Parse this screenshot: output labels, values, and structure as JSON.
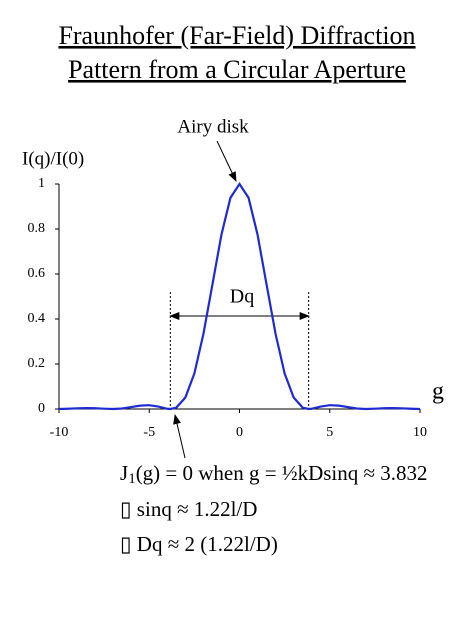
{
  "chart_data": {
    "type": "line",
    "title": [
      "Fraunhofer (Far-Field) Diffraction",
      "Pattern from a Circular Aperture"
    ],
    "y_label": "I(q)/I(0)",
    "x_label": "g",
    "x": [
      -10,
      -9.5,
      -9,
      -8.5,
      -8,
      -7.5,
      -7,
      -6.5,
      -6,
      -5.5,
      -5,
      -4.5,
      -4,
      -3.83,
      -3.5,
      -3,
      -2.5,
      -2,
      -1.5,
      -1,
      -0.5,
      0,
      0.5,
      1,
      1.5,
      2,
      2.5,
      3,
      3.5,
      3.83,
      4,
      4.5,
      5,
      5.5,
      6,
      6.5,
      7,
      7.5,
      8,
      8.5,
      9,
      9.5,
      10
    ],
    "series": [
      {
        "color": "#1f2bd0",
        "values": [
          0.0001,
          0.0012,
          0.003,
          0.0041,
          0.0034,
          0.0013,
          0,
          0.0022,
          0.0085,
          0.015,
          0.017,
          0.011,
          0.001,
          0,
          0.006,
          0.051,
          0.158,
          0.333,
          0.553,
          0.775,
          0.939,
          1,
          0.939,
          0.775,
          0.553,
          0.333,
          0.158,
          0.051,
          0.006,
          0,
          0.001,
          0.011,
          0.017,
          0.015,
          0.0085,
          0.0022,
          0,
          0.0013,
          0.0034,
          0.0041,
          0.003,
          0.0012,
          0.0001
        ]
      }
    ],
    "xlim": [
      -10,
      10
    ],
    "xticks": [
      -10,
      -5,
      0,
      5,
      10
    ],
    "ylim": [
      0,
      1
    ],
    "yticks": [
      0,
      0.2,
      0.4,
      0.6,
      0.8,
      1
    ],
    "grid": false,
    "peak_annotation": "Airy disk",
    "width_annotation": "Dq",
    "first_zeros": [
      -3.832,
      3.832
    ],
    "notes": [
      [
        "J",
        "1",
        "(g) = 0  when g = ½kDsinq ≈ 3.832"
      ],
      [
        "▯ sinq ≈ 1.22l/D"
      ],
      [
        "▯ Dq ≈ 2 (1.22l/D)"
      ]
    ]
  }
}
